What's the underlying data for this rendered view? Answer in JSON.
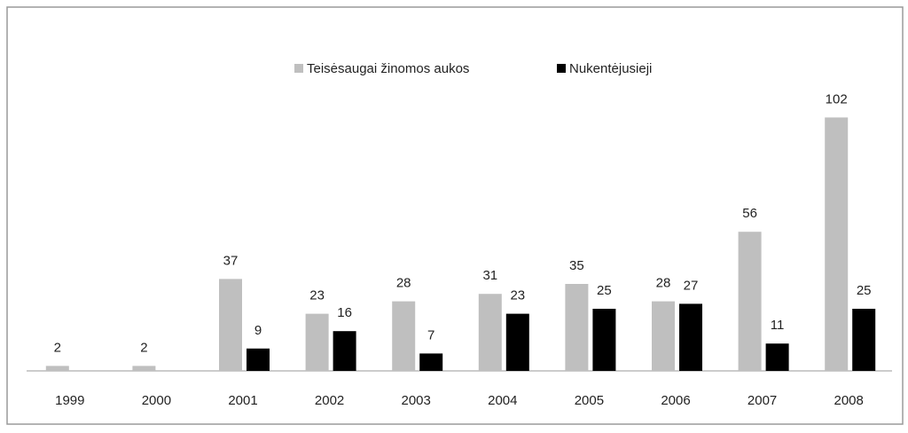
{
  "chart_data": {
    "type": "bar",
    "categories": [
      "1999",
      "2000",
      "2001",
      "2002",
      "2003",
      "2004",
      "2005",
      "2006",
      "2007",
      "2008"
    ],
    "series": [
      {
        "name": "Teisėsaugai žinomos aukos",
        "color": "#bfbfbf",
        "values": [
          2,
          2,
          37,
          23,
          28,
          31,
          35,
          28,
          56,
          102
        ]
      },
      {
        "name": "Nukentėjusieji",
        "color": "#000000",
        "values": [
          null,
          null,
          9,
          16,
          7,
          23,
          25,
          27,
          11,
          25
        ]
      }
    ],
    "ylim": [
      0,
      110
    ],
    "legend": "top",
    "grid": false
  }
}
